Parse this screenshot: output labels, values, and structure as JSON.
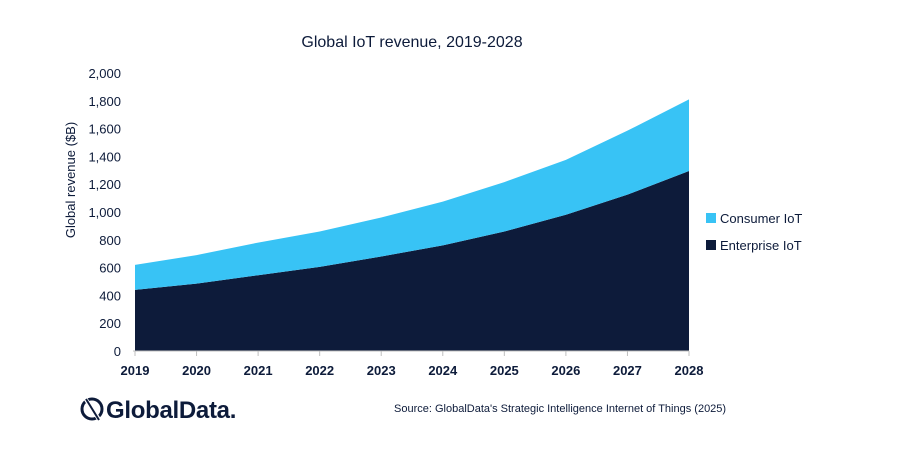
{
  "chart_data": {
    "type": "area",
    "stacked": true,
    "title": "Global IoT revenue, 2019-2028",
    "xlabel": "",
    "ylabel": "Global revenue ($B)",
    "x": [
      "2019",
      "2020",
      "2021",
      "2022",
      "2023",
      "2024",
      "2025",
      "2026",
      "2027",
      "2028"
    ],
    "ylim": [
      0,
      2000
    ],
    "yticks": [
      "0",
      "200",
      "400",
      "600",
      "800",
      "1,000",
      "1,200",
      "1,400",
      "1,600",
      "1,800",
      "2,000"
    ],
    "ytick_values": [
      0,
      200,
      400,
      600,
      800,
      1000,
      1200,
      1400,
      1600,
      1800,
      2000
    ],
    "grid": false,
    "legend_position": "right",
    "series": [
      {
        "name": "Enterprise IoT",
        "color": "#0d1b3a",
        "values": [
          440,
          485,
          545,
          605,
          680,
          760,
          860,
          980,
          1125,
          1295
        ]
      },
      {
        "name": "Consumer IoT",
        "color": "#38c3f5",
        "values": [
          180,
          205,
          235,
          255,
          280,
          315,
          355,
          395,
          460,
          515
        ]
      }
    ],
    "legend": [
      "Consumer IoT",
      "Enterprise IoT"
    ]
  },
  "brand": {
    "name": "GlobalData.",
    "icon": "globaldata-logo-icon"
  },
  "source": "Source: GlobalData's Strategic Intelligence Internet of Things (2025)"
}
